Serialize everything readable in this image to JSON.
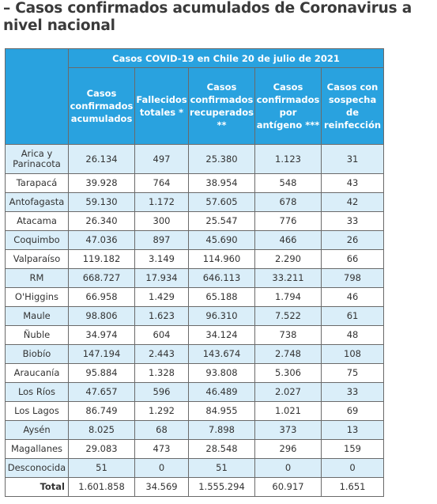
{
  "heading": "– Casos confirmados acumulados de Coronavirus a nivel nacional",
  "table": {
    "caption": "Casos COVID-19 en Chile 20 de julio de 2021",
    "columns": [
      "Casos confirmados acumulados",
      "Fallecidos totales *",
      "Casos confirmados recuperados **",
      "Casos confirmados por antígeno ***",
      "Casos con sospecha de reinfección"
    ],
    "rows": [
      {
        "region": "Arica y Parinacota",
        "values": [
          "26.134",
          "497",
          "25.380",
          "1.123",
          "31"
        ]
      },
      {
        "region": "Tarapacá",
        "values": [
          "39.928",
          "764",
          "38.954",
          "548",
          "43"
        ]
      },
      {
        "region": "Antofagasta",
        "values": [
          "59.130",
          "1.172",
          "57.605",
          "678",
          "42"
        ]
      },
      {
        "region": "Atacama",
        "values": [
          "26.340",
          "300",
          "25.547",
          "776",
          "33"
        ]
      },
      {
        "region": "Coquimbo",
        "values": [
          "47.036",
          "897",
          "45.690",
          "466",
          "26"
        ]
      },
      {
        "region": "Valparaíso",
        "values": [
          "119.182",
          "3.149",
          "114.960",
          "2.290",
          "66"
        ]
      },
      {
        "region": "RM",
        "values": [
          "668.727",
          "17.934",
          "646.113",
          "33.211",
          "798"
        ]
      },
      {
        "region": "O'Higgins",
        "values": [
          "66.958",
          "1.429",
          "65.188",
          "1.794",
          "46"
        ]
      },
      {
        "region": "Maule",
        "values": [
          "98.806",
          "1.623",
          "96.310",
          "7.522",
          "61"
        ]
      },
      {
        "region": "Ñuble",
        "values": [
          "34.974",
          "604",
          "34.124",
          "738",
          "48"
        ]
      },
      {
        "region": "Biobío",
        "values": [
          "147.194",
          "2.443",
          "143.674",
          "2.748",
          "108"
        ]
      },
      {
        "region": "Araucanía",
        "values": [
          "95.884",
          "1.328",
          "93.808",
          "5.306",
          "75"
        ]
      },
      {
        "region": "Los Ríos",
        "values": [
          "47.657",
          "596",
          "46.489",
          "2.027",
          "33"
        ]
      },
      {
        "region": "Los Lagos",
        "values": [
          "86.749",
          "1.292",
          "84.955",
          "1.021",
          "69"
        ]
      },
      {
        "region": "Aysén",
        "values": [
          "8.025",
          "68",
          "7.898",
          "373",
          "13"
        ]
      },
      {
        "region": "Magallanes",
        "values": [
          "29.083",
          "473",
          "28.548",
          "296",
          "159"
        ]
      },
      {
        "region": "Desconocida",
        "values": [
          "51",
          "0",
          "51",
          "0",
          "0"
        ]
      }
    ],
    "total": {
      "label": "Total",
      "values": [
        "1.601.858",
        "34.569",
        "1.555.294",
        "60.917",
        "1.651"
      ]
    }
  },
  "colors": {
    "header_bg": "#29a2df",
    "stripe_bg": "#daeef9",
    "border": "#6a6a6a"
  }
}
